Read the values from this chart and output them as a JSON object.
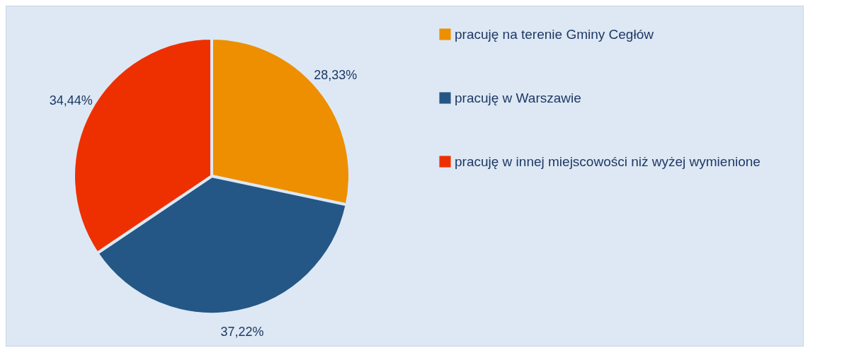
{
  "chart_data": {
    "type": "pie",
    "categories": [
      "pracuję na terenie Gminy Cegłów",
      "pracuję w Warszawie",
      "pracuję w innej miejscowości niż wyżej wymienione"
    ],
    "values": [
      28.33,
      37.22,
      34.44
    ],
    "colors": [
      "#ed8f00",
      "#245785",
      "#ee3000"
    ],
    "value_labels": [
      "28,33%",
      "37,22%",
      "34,44%"
    ],
    "legend": "right"
  }
}
